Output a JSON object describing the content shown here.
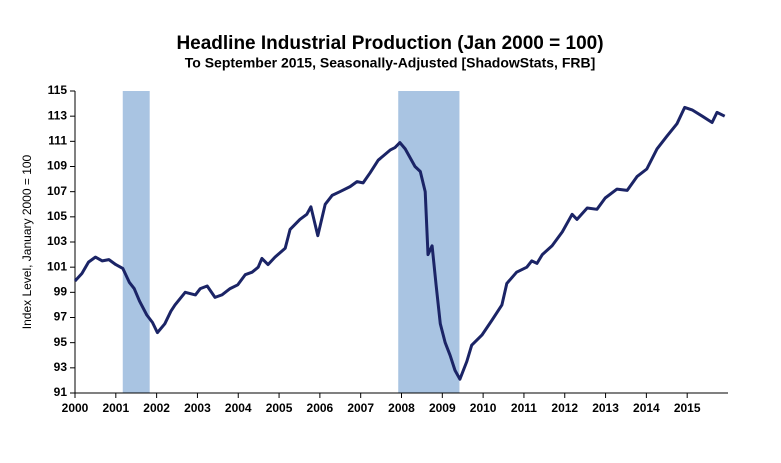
{
  "chart_data": {
    "type": "line",
    "title": "Headline Industrial Production (Jan 2000 = 100)",
    "subtitle": "To September 2015, Seasonally-Adjusted [ShadowStats, FRB]",
    "y_label": "Index Level, January 2000 = 100",
    "xlim": [
      2000,
      2016
    ],
    "xticks": [
      2000,
      2001,
      2002,
      2003,
      2004,
      2005,
      2006,
      2007,
      2008,
      2009,
      2010,
      2011,
      2012,
      2013,
      2014,
      2015
    ],
    "ylim": [
      91,
      115
    ],
    "yticks": [
      91,
      93,
      95,
      97,
      99,
      101,
      103,
      105,
      107,
      109,
      111,
      113,
      115
    ],
    "shaded_periods": [
      [
        2001.17,
        2001.83
      ],
      [
        2007.92,
        2009.42
      ]
    ],
    "shade_color": "#a9c4e2",
    "series": [
      {
        "name": "Headline Industrial Production",
        "color": "#1b2466",
        "x": [
          2000.0,
          2000.17,
          2000.33,
          2000.5,
          2000.67,
          2000.83,
          2001.0,
          2001.17,
          2001.33,
          2001.45,
          2001.58,
          2001.76,
          2001.9,
          2002.02,
          2002.2,
          2002.35,
          2002.45,
          2002.7,
          2002.95,
          2003.07,
          2003.24,
          2003.43,
          2003.6,
          2003.8,
          2003.99,
          2004.17,
          2004.34,
          2004.49,
          2004.58,
          2004.73,
          2004.9,
          2005.15,
          2005.27,
          2005.51,
          2005.68,
          2005.78,
          2005.95,
          2006.13,
          2006.3,
          2006.49,
          2006.74,
          2006.91,
          2007.06,
          2007.23,
          2007.43,
          2007.72,
          2007.84,
          2007.96,
          2008.09,
          2008.33,
          2008.46,
          2008.58,
          2008.65,
          2008.75,
          2008.85,
          2008.95,
          2009.07,
          2009.19,
          2009.31,
          2009.43,
          2009.6,
          2009.72,
          2009.97,
          2010.22,
          2010.46,
          2010.58,
          2010.82,
          2011.07,
          2011.19,
          2011.32,
          2011.45,
          2011.69,
          2011.94,
          2012.18,
          2012.3,
          2012.55,
          2012.79,
          2012.99,
          2013.28,
          2013.53,
          2013.77,
          2014.01,
          2014.26,
          2014.5,
          2014.75,
          2014.94,
          2015.12,
          2015.37,
          2015.61,
          2015.73,
          2015.92
        ],
        "values": [
          99.9,
          100.5,
          101.4,
          101.8,
          101.5,
          101.6,
          101.2,
          100.9,
          99.8,
          99.3,
          98.3,
          97.2,
          96.6,
          95.8,
          96.5,
          97.5,
          98.0,
          99.0,
          98.8,
          99.3,
          99.5,
          98.6,
          98.8,
          99.3,
          99.6,
          100.4,
          100.6,
          101.0,
          101.7,
          101.2,
          101.8,
          102.5,
          104.0,
          104.8,
          105.2,
          105.8,
          103.5,
          106.0,
          106.7,
          107.0,
          107.4,
          107.8,
          107.7,
          108.5,
          109.5,
          110.3,
          110.5,
          110.9,
          110.4,
          109.0,
          108.6,
          107.0,
          102.0,
          102.7,
          99.5,
          96.5,
          95.0,
          94.0,
          92.8,
          92.1,
          93.5,
          94.8,
          95.6,
          96.8,
          98.0,
          99.7,
          100.6,
          101.0,
          101.5,
          101.3,
          102.0,
          102.7,
          103.8,
          105.2,
          104.8,
          105.7,
          105.6,
          106.5,
          107.2,
          107.1,
          108.2,
          108.8,
          110.4,
          111.4,
          112.4,
          113.7,
          113.5,
          113.0,
          112.5,
          113.3,
          113.0
        ]
      }
    ]
  }
}
